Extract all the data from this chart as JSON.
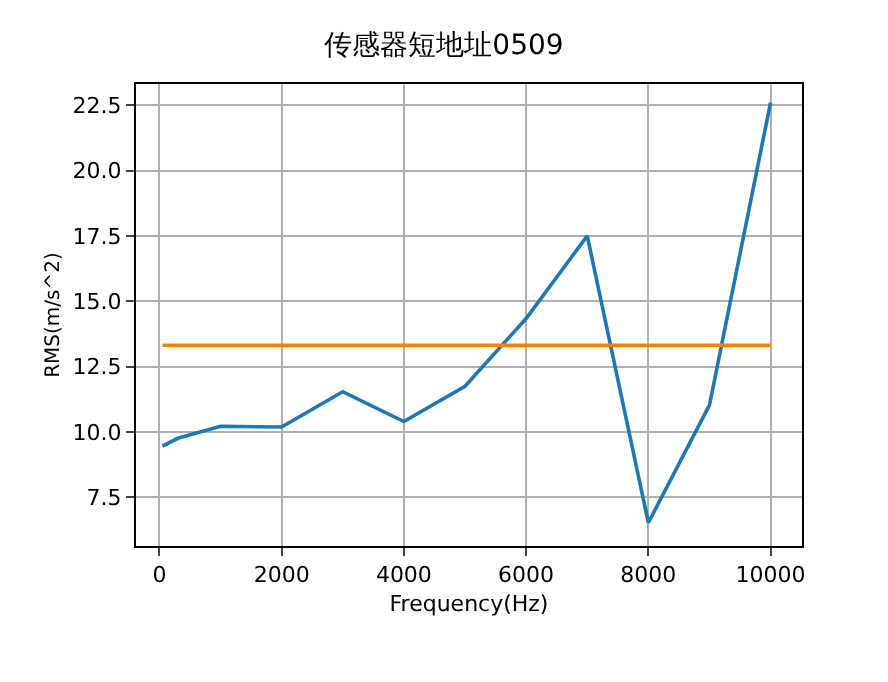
{
  "chart_data": {
    "type": "line",
    "title": "传感器短地址0509",
    "xlabel": "Frequency(Hz)",
    "ylabel": "RMS(m/s^2)",
    "x": [
      50,
      300,
      1000,
      2000,
      3000,
      4000,
      5000,
      6000,
      7000,
      8000,
      9000,
      10000
    ],
    "series": [
      {
        "color": "#1f77b4",
        "values": [
          9.46,
          9.76,
          10.22,
          10.19,
          11.54,
          10.4,
          11.75,
          14.34,
          17.5,
          6.53,
          11.03,
          22.6
        ]
      },
      {
        "color": "#ff7f0e",
        "x": [
          50,
          10000
        ],
        "values": [
          13.32,
          13.32
        ]
      }
    ],
    "xlim": [
      -383,
      10514
    ],
    "ylim": [
      5.64,
      23.31
    ],
    "xticks": [
      0,
      2000,
      4000,
      6000,
      8000,
      10000
    ],
    "yticks": [
      {
        "value": 7.5,
        "label": "7.5"
      },
      {
        "value": 10,
        "label": "10.0"
      },
      {
        "value": 12.5,
        "label": "12.5"
      },
      {
        "value": 15,
        "label": "15.0"
      },
      {
        "value": 17.5,
        "label": "17.5"
      },
      {
        "value": 20,
        "label": "20.0"
      },
      {
        "value": 22.5,
        "label": "22.5"
      }
    ],
    "grid": true
  }
}
